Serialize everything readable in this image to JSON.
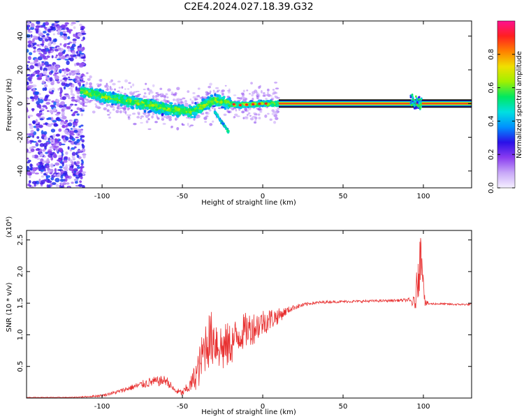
{
  "figure": {
    "title": "C2E4.2024.027.18.39.G32"
  },
  "chart_data": [
    {
      "type": "heatmap",
      "xlabel": "Height of straight line (km)",
      "ylabel": "Frequency (Hz)",
      "xlim": [
        -147,
        130
      ],
      "ylim": [
        -50,
        49
      ],
      "xticks": [
        -100,
        -50,
        0,
        50,
        100
      ],
      "yticks": [
        -40,
        -20,
        0,
        20,
        40
      ],
      "grid": false,
      "colorbar": {
        "label": "Normalized spectral amplitude",
        "ticks": [
          0.0,
          0.2,
          0.4,
          0.6,
          0.8
        ],
        "range": [
          0,
          1
        ],
        "colormap": [
          "#f5f0ff",
          "#c8a8f8",
          "#8a3cf0",
          "#2a10e8",
          "#0090ff",
          "#00e0e0",
          "#00e860",
          "#a0f000",
          "#f0e000",
          "#ff8000",
          "#ff2020",
          "#ff1090"
        ]
      },
      "ridge": {
        "x": [
          -115,
          -100,
          -80,
          -60,
          -45,
          -30,
          -15,
          0,
          10,
          50,
          90,
          93,
          97,
          130
        ],
        "y": [
          8,
          4,
          1,
          -3,
          -5,
          2,
          -1,
          0,
          0,
          0,
          0,
          2,
          0,
          0
        ]
      },
      "noise_region_x": [
        -147,
        -115
      ]
    },
    {
      "type": "line",
      "xlabel": "Height of straight line (km)",
      "ylabel": "SNR (10 * v/v)",
      "y_multiplier": "(x10⁴)",
      "xlim": [
        -147,
        130
      ],
      "ylim": [
        0,
        2.65
      ],
      "xticks": [
        -100,
        -50,
        0,
        50,
        100
      ],
      "yticks": [
        0.5,
        1.0,
        1.5,
        2.0,
        2.5
      ],
      "grid": false,
      "series": [
        {
          "color": "#e83030",
          "x": [
            -147,
            -120,
            -110,
            -100,
            -90,
            -80,
            -70,
            -60,
            -55,
            -50,
            -45,
            -40,
            -35,
            -30,
            -25,
            -20,
            -15,
            -10,
            -5,
            0,
            5,
            10,
            15,
            20,
            30,
            40,
            60,
            80,
            90,
            95,
            97,
            99,
            101,
            104,
            110,
            120,
            130
          ],
          "y": [
            0.01,
            0.01,
            0.02,
            0.04,
            0.1,
            0.18,
            0.25,
            0.28,
            0.12,
            0.08,
            0.2,
            0.45,
            0.9,
            0.95,
            0.78,
            0.85,
            1.0,
            1.08,
            1.12,
            1.2,
            1.25,
            1.3,
            1.38,
            1.44,
            1.5,
            1.52,
            1.53,
            1.54,
            1.55,
            1.5,
            2.1,
            2.3,
            1.5,
            1.49,
            1.49,
            1.48,
            1.48
          ],
          "noise": [
            0.005,
            0.005,
            0.01,
            0.02,
            0.03,
            0.05,
            0.08,
            0.08,
            0.05,
            0.05,
            0.12,
            0.3,
            0.45,
            0.45,
            0.4,
            0.35,
            0.3,
            0.28,
            0.26,
            0.22,
            0.18,
            0.12,
            0.06,
            0.04,
            0.025,
            0.02,
            0.02,
            0.02,
            0.025,
            0.12,
            0.5,
            0.35,
            0.06,
            0.015,
            0.015,
            0.015,
            0.015
          ]
        }
      ]
    }
  ]
}
